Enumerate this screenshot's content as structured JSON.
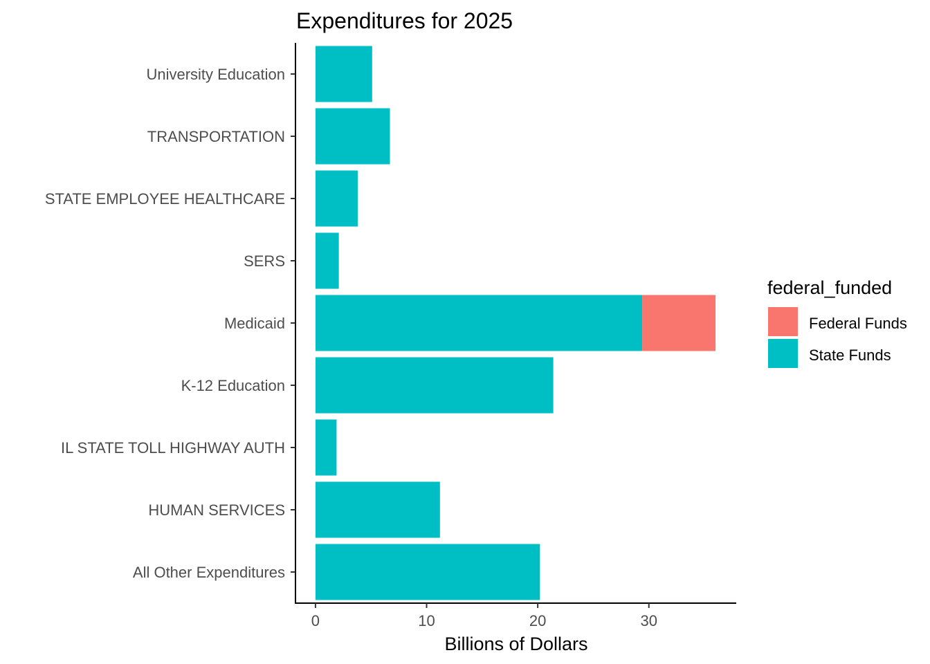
{
  "chart_data": {
    "type": "bar",
    "orientation": "horizontal",
    "stacked": true,
    "title": "Expenditures for 2025",
    "xlabel": "Billions of Dollars",
    "ylabel": "",
    "xlim": [
      -1.8,
      37.8
    ],
    "xticks": [
      0,
      10,
      20,
      30
    ],
    "grid": false,
    "categories": [
      "University Education",
      "TRANSPORTATION",
      "STATE EMPLOYEE HEALTHCARE",
      "SERS",
      "Medicaid",
      "K-12 Education",
      "IL STATE TOLL HIGHWAY AUTH",
      "HUMAN SERVICES",
      "All Other Expenditures"
    ],
    "series": [
      {
        "name": "State Funds",
        "color": "#00BFC4",
        "values": [
          5.1,
          6.7,
          3.8,
          2.1,
          29.4,
          21.4,
          1.9,
          11.2,
          20.2
        ]
      },
      {
        "name": "Federal Funds",
        "color": "#F8766D",
        "values": [
          0,
          0,
          0,
          0,
          6.6,
          0,
          0,
          0,
          0
        ]
      }
    ],
    "legend": {
      "title": "federal_funded",
      "position": "right",
      "entries": [
        {
          "label": "Federal Funds",
          "color": "#F8766D"
        },
        {
          "label": "State Funds",
          "color": "#00BFC4"
        }
      ]
    }
  }
}
